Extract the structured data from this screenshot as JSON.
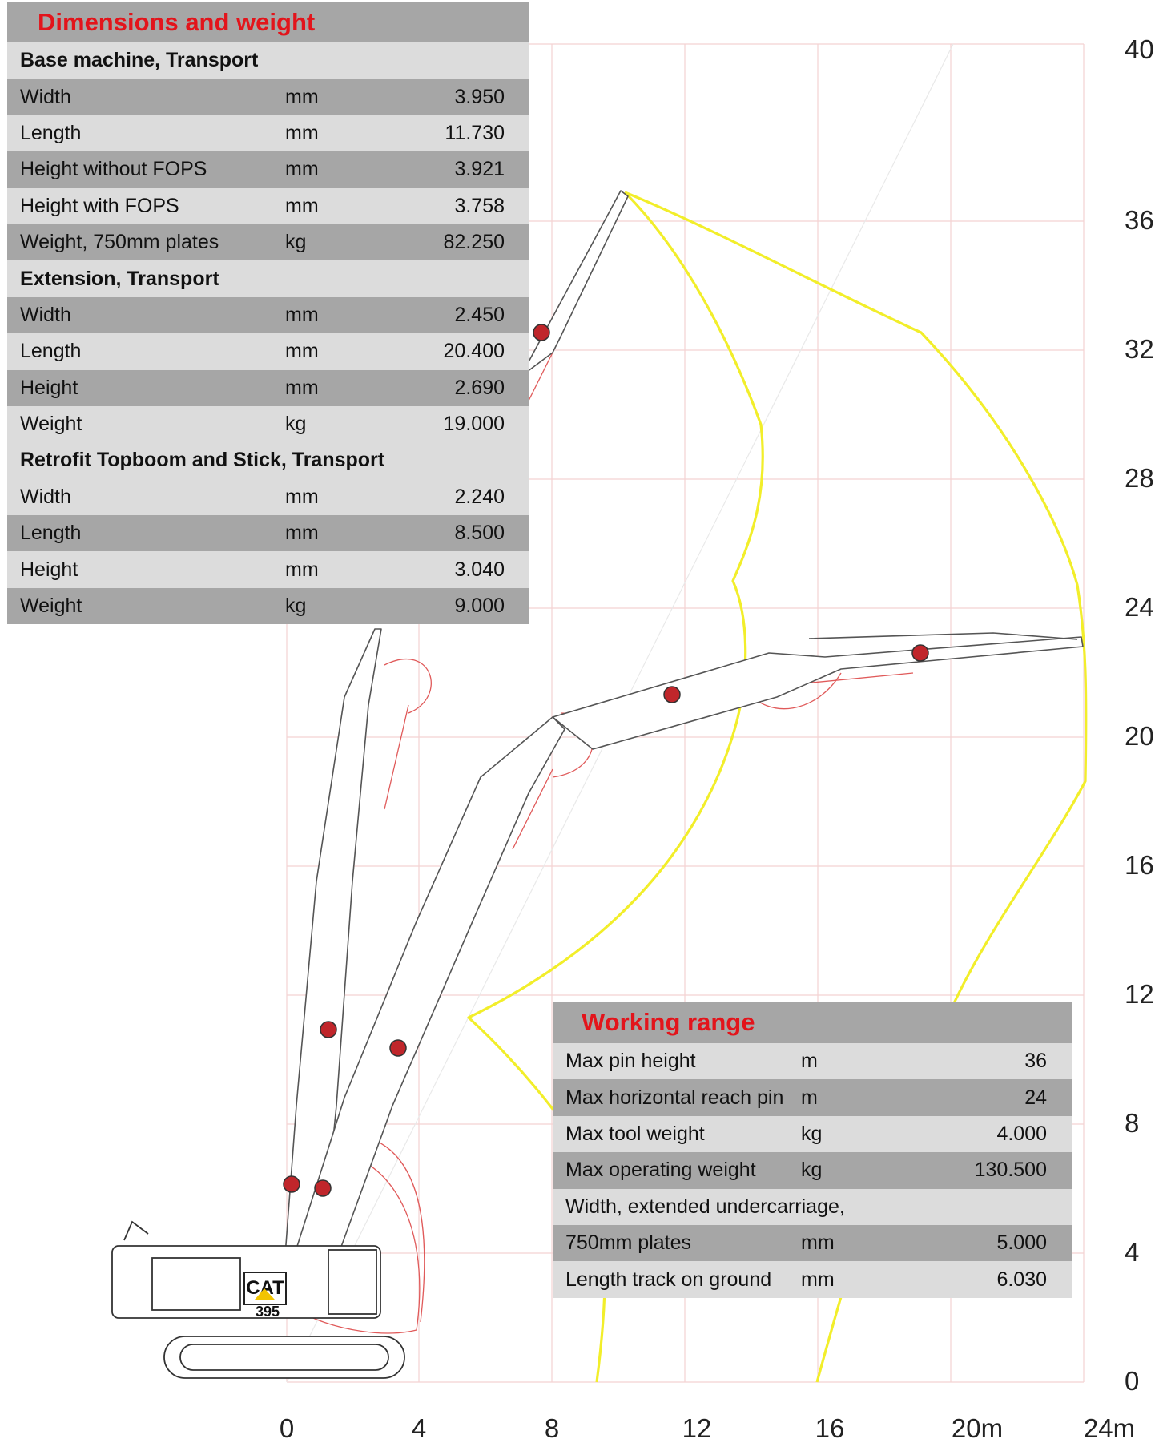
{
  "dimensions_panel": {
    "title": "Dimensions and weight",
    "rows": [
      {
        "kind": "section",
        "label": "Base machine, Transport"
      },
      {
        "kind": "dark",
        "label": "Width",
        "unit": "mm",
        "value": "3.950"
      },
      {
        "kind": "light",
        "label": "Length",
        "unit": "mm",
        "value": "11.730"
      },
      {
        "kind": "dark",
        "label": "Height without FOPS",
        "unit": "mm",
        "value": "3.921"
      },
      {
        "kind": "light",
        "label": "Height with FOPS",
        "unit": "mm",
        "value": "3.758"
      },
      {
        "kind": "dark",
        "label": "Weight, 750mm plates",
        "unit": "kg",
        "value": "82.250"
      },
      {
        "kind": "section",
        "label": "Extension, Transport"
      },
      {
        "kind": "dark",
        "label": "Width",
        "unit": "mm",
        "value": "2.450"
      },
      {
        "kind": "light",
        "label": "Length",
        "unit": "mm",
        "value": "20.400"
      },
      {
        "kind": "dark",
        "label": "Height",
        "unit": "mm",
        "value": "2.690"
      },
      {
        "kind": "light",
        "label": "Weight",
        "unit": "kg",
        "value": "19.000"
      },
      {
        "kind": "section",
        "label": "Retrofit Topboom and Stick, Transport"
      },
      {
        "kind": "light",
        "label": "Width",
        "unit": "mm",
        "value": "2.240"
      },
      {
        "kind": "dark",
        "label": "Length",
        "unit": "mm",
        "value": "8.500"
      },
      {
        "kind": "light",
        "label": "Height",
        "unit": "mm",
        "value": "3.040"
      },
      {
        "kind": "dark",
        "label": "Weight",
        "unit": "kg",
        "value": "9.000"
      }
    ]
  },
  "working_range_panel": {
    "title": "Working range",
    "rows": [
      {
        "kind": "light",
        "label": "Max pin height",
        "unit": "m",
        "value": "36"
      },
      {
        "kind": "dark",
        "label": "Max horizontal reach pin",
        "unit": "m",
        "value": "24"
      },
      {
        "kind": "light",
        "label": "Max tool weight",
        "unit": "kg",
        "value": "4.000"
      },
      {
        "kind": "dark",
        "label": "Max operating weight",
        "unit": "kg",
        "value": "130.500"
      },
      {
        "kind": "light",
        "label": "Width, extended undercarriage,",
        "unit": "",
        "value": ""
      },
      {
        "kind": "dark",
        "label": "750mm plates",
        "unit": "mm",
        "value": "5.000"
      },
      {
        "kind": "light",
        "label": "Length track on ground",
        "unit": "mm",
        "value": "6.030"
      }
    ]
  },
  "axes": {
    "x_ticks": [
      "0",
      "4",
      "8",
      "12",
      "16",
      "20m",
      "24m"
    ],
    "y_ticks": [
      "0",
      "4",
      "8",
      "12",
      "16",
      "20",
      "24",
      "28",
      "32",
      "36",
      "40"
    ]
  },
  "machine": {
    "brand": "CAT",
    "model": "395"
  },
  "colors": {
    "envelope": "#f2ee2a",
    "grid": "#f4d2d2",
    "title_red": "#e3141b",
    "row_dark": "#a6a6a6",
    "row_light": "#dcdcdc"
  }
}
